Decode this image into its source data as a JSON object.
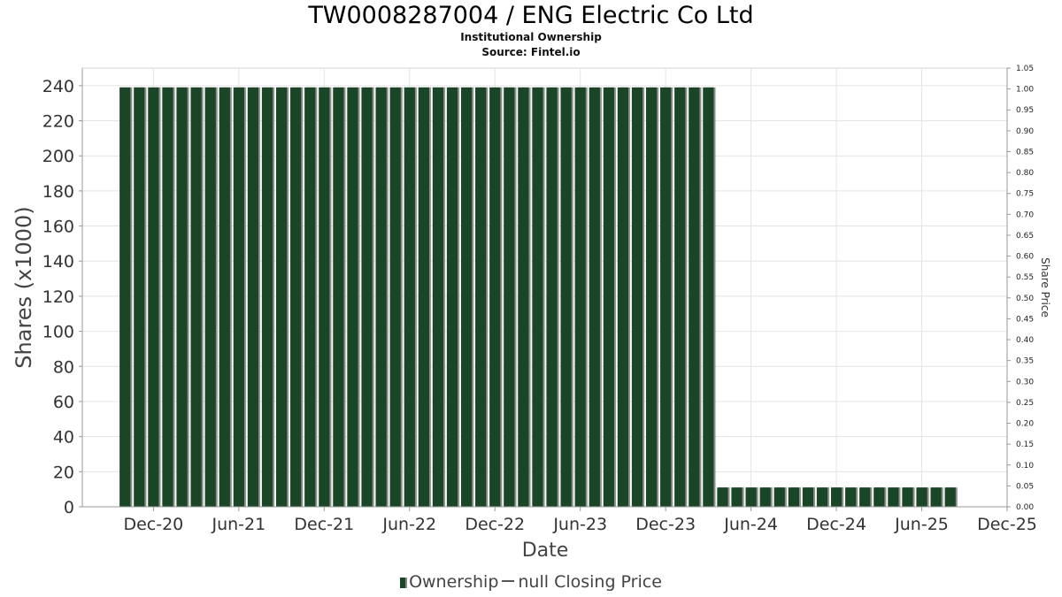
{
  "chart_data": {
    "type": "bar",
    "title": "TW0008287004 / ENG Electric Co Ltd",
    "subtitle": "Institutional Ownership",
    "source": "Source: Fintel.io",
    "xlabel": "Date",
    "ylabel": "Shares (x1000)",
    "y2label": "Share Price",
    "ylim": [
      0,
      250
    ],
    "yticks": [
      0,
      20,
      40,
      60,
      80,
      100,
      120,
      140,
      160,
      180,
      200,
      220,
      240
    ],
    "y2lim": [
      0,
      1.05
    ],
    "y2ticks": [
      "0.00",
      "0.05",
      "0.10",
      "0.15",
      "0.20",
      "0.25",
      "0.30",
      "0.35",
      "0.40",
      "0.45",
      "0.50",
      "0.55",
      "0.60",
      "0.65",
      "0.70",
      "0.75",
      "0.80",
      "0.85",
      "0.90",
      "0.95",
      "1.00",
      "1.05"
    ],
    "xlim": [
      "2020-07-01",
      "2025-12-01"
    ],
    "xticks": [
      "Dec-20",
      "Jun-21",
      "Dec-21",
      "Jun-22",
      "Dec-22",
      "Jun-23",
      "Dec-23",
      "Jun-24",
      "Dec-24",
      "Jun-25",
      "Dec-25"
    ],
    "grid": true,
    "legend_position": "bottom",
    "series": [
      {
        "name": "Ownership",
        "color": "#1a4526",
        "start_date": "2020-10-01",
        "values": [
          239,
          239,
          239,
          239,
          239,
          239,
          239,
          239,
          239,
          239,
          239,
          239,
          239,
          239,
          239,
          239,
          239,
          239,
          239,
          239,
          239,
          239,
          239,
          239,
          239,
          239,
          239,
          239,
          239,
          239,
          239,
          239,
          239,
          239,
          239,
          239,
          239,
          239,
          239,
          239,
          239,
          239,
          11,
          11,
          11,
          11,
          11,
          11,
          11,
          11,
          11,
          11,
          11,
          11,
          11,
          11,
          11,
          11,
          11
        ]
      },
      {
        "name": "null Closing Price",
        "color": "#555555",
        "values": []
      }
    ]
  }
}
